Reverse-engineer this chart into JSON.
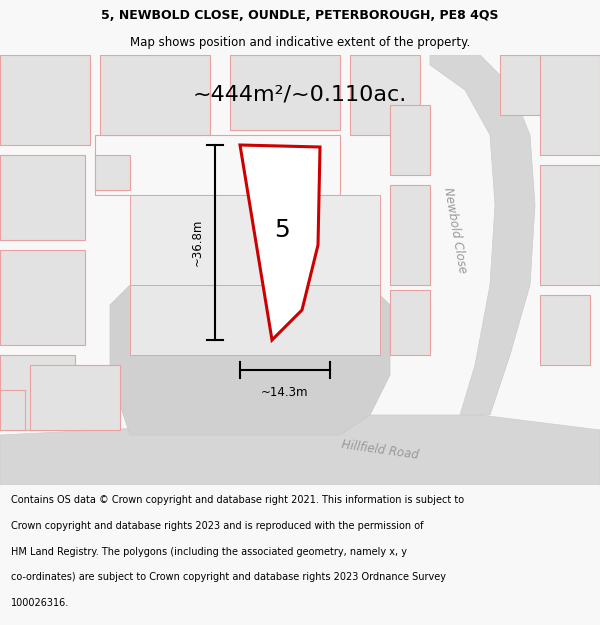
{
  "title_line1": "5, NEWBOLD CLOSE, OUNDLE, PETERBOROUGH, PE8 4QS",
  "title_line2": "Map shows position and indicative extent of the property.",
  "area_text": "~444m²/~0.110ac.",
  "plot_number": "5",
  "width_label": "~14.3m",
  "height_label": "~36.8m",
  "road_label1": "Newbold Close",
  "road_label2": "Hillfield Road",
  "footer_lines": [
    "Contains OS data © Crown copyright and database right 2021. This information is subject to",
    "Crown copyright and database rights 2023 and is reproduced with the permission of",
    "HM Land Registry. The polygons (including the associated geometry, namely x, y",
    "co-ordinates) are subject to Crown copyright and database rights 2023 Ordnance Survey",
    "100026316."
  ],
  "bg_color": "#f8f8f8",
  "map_bg": "#ffffff",
  "plot_fill": "#ffffff",
  "plot_edge": "#cc0000",
  "building_fill": "#e2e2e2",
  "building_edge": "#e8a0a0",
  "road_fill": "#d6d6d6",
  "road_edge": "#cccccc",
  "title_fontsize": 9.0,
  "area_fontsize": 16,
  "footer_fontsize": 7.0,
  "dim_fontsize": 8.5,
  "road_label_fontsize": 8.5,
  "plot_num_fontsize": 18
}
